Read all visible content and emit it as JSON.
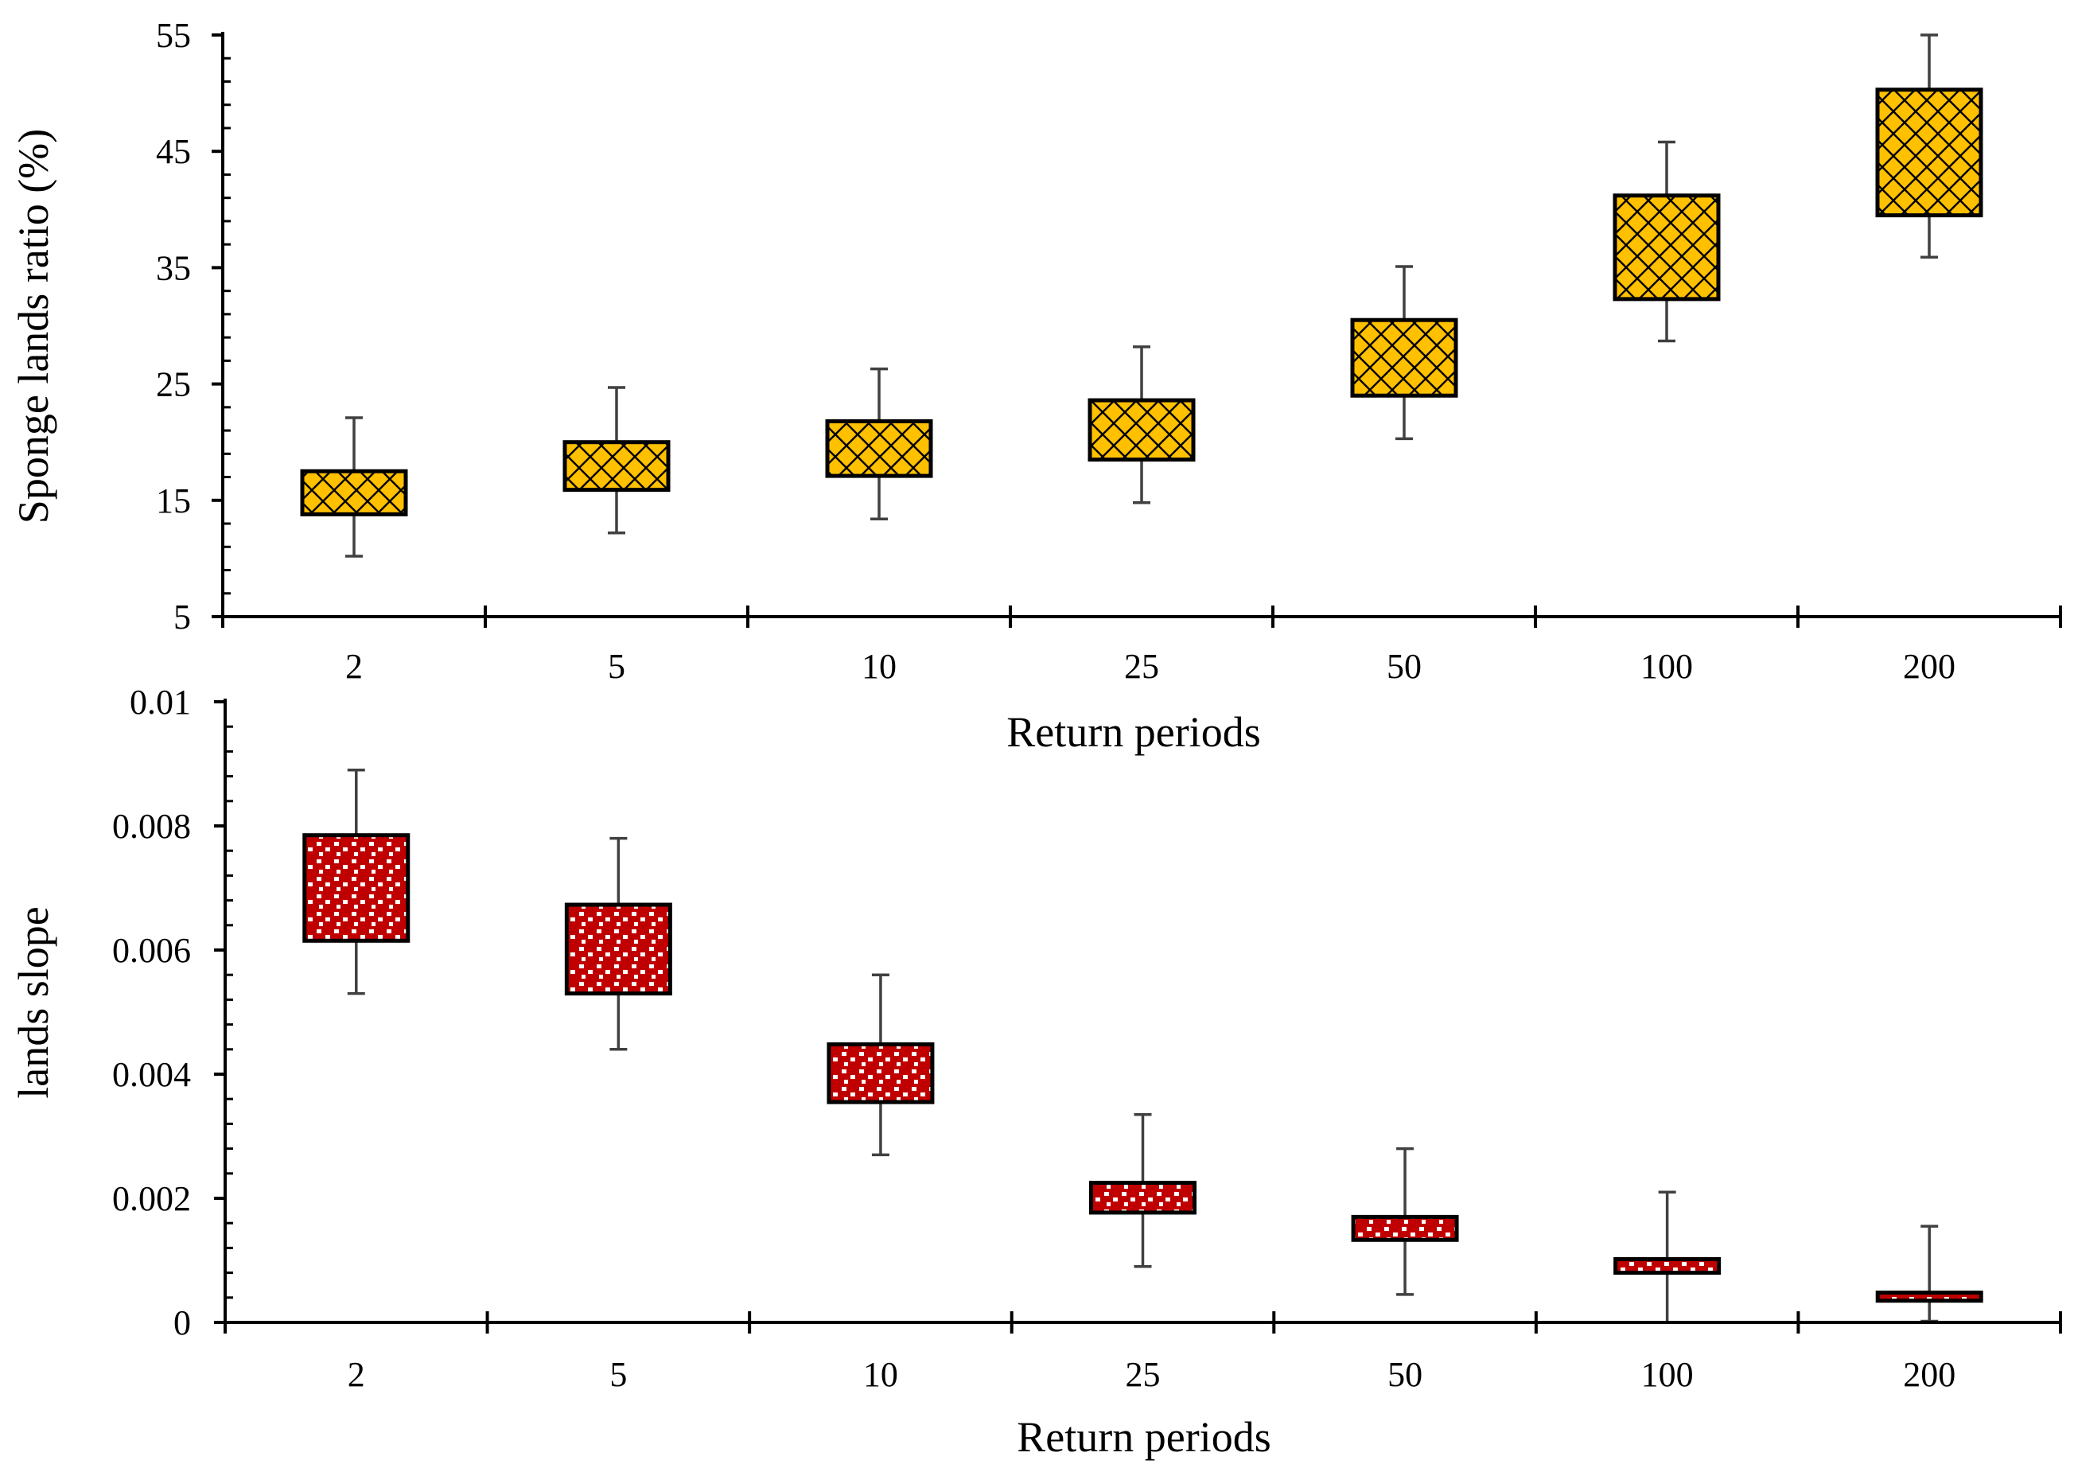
{
  "chart_data": [
    {
      "type": "box",
      "ylabel": "Sponge lands ratio (%)",
      "xlabel": "Return periods",
      "categories": [
        "2",
        "5",
        "10",
        "25",
        "50",
        "100",
        "200"
      ],
      "ylim": [
        5,
        55
      ],
      "yticks": [
        "5",
        "15",
        "25",
        "35",
        "45",
        "55"
      ],
      "series": [
        {
          "name": "Sponge lands ratio",
          "fill_color": "#FFC000",
          "pattern": "crosshatch",
          "min": [
            10.2,
            12.2,
            13.4,
            14.8,
            20.3,
            28.7,
            35.9
          ],
          "q1": [
            13.8,
            15.9,
            17.1,
            18.5,
            24.0,
            32.3,
            39.5
          ],
          "q3": [
            17.5,
            20.0,
            21.8,
            23.6,
            30.5,
            41.2,
            50.3
          ],
          "max": [
            22.1,
            24.7,
            26.3,
            28.2,
            35.1,
            45.8,
            55.0
          ]
        }
      ]
    },
    {
      "type": "box",
      "ylabel": "lands slope",
      "xlabel": "Return periods",
      "categories": [
        "2",
        "5",
        "10",
        "25",
        "50",
        "100",
        "200"
      ],
      "ylim": [
        0,
        0.01
      ],
      "yticks": [
        "0",
        "0.002",
        "0.004",
        "0.006",
        "0.008",
        "0.01"
      ],
      "series": [
        {
          "name": "lands slope",
          "fill_color": "#C00000",
          "pattern": "white-dots",
          "min": [
            0.0053,
            0.0044,
            0.0027,
            0.0009,
            0.00045,
            0.0,
            2e-05
          ],
          "q1": [
            0.00615,
            0.0053,
            0.00355,
            0.00177,
            0.00133,
            0.0008,
            0.00035
          ],
          "q3": [
            0.00785,
            0.00673,
            0.00448,
            0.00225,
            0.0017,
            0.00102,
            0.00048
          ],
          "max": [
            0.0089,
            0.0078,
            0.0056,
            0.00335,
            0.0028,
            0.0021,
            0.00155
          ]
        }
      ]
    }
  ]
}
